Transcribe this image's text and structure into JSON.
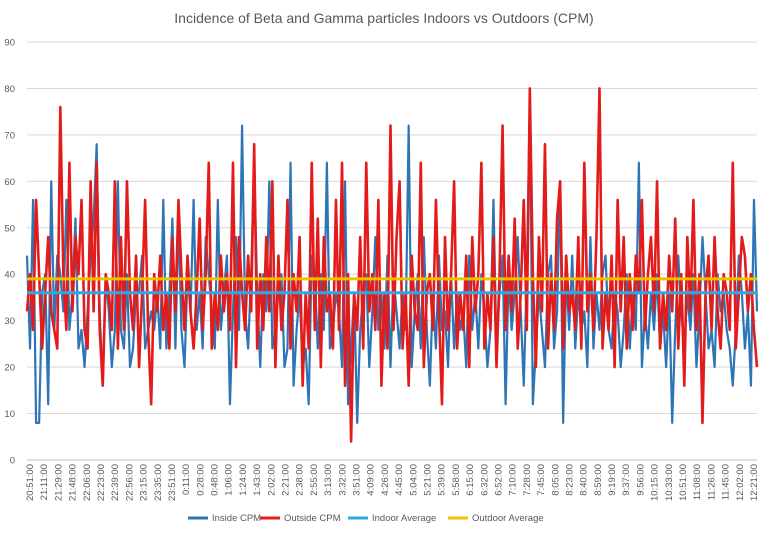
{
  "chart_data": {
    "type": "line",
    "title": "Incidence of Beta and Gamma particles Indoors vs Outdoors (CPM)",
    "ylim": [
      0,
      90
    ],
    "yticks": [
      0,
      10,
      20,
      30,
      40,
      50,
      60,
      70,
      80,
      90
    ],
    "grid": true,
    "legend_position": "bottom",
    "x_tick_labels": [
      "20:51:00",
      "21:11:00",
      "21:29:00",
      "21:48:00",
      "22:06:00",
      "22:23:00",
      "22:39:00",
      "22:56:00",
      "23:15:00",
      "23:35:00",
      "23:51:00",
      "0:11:00",
      "0:28:00",
      "0:48:00",
      "1:06:00",
      "1:24:00",
      "1:43:00",
      "2:02:00",
      "2:21:00",
      "2:38:00",
      "2:55:00",
      "3:13:00",
      "3:32:00",
      "3:51:00",
      "4:09:00",
      "4:26:00",
      "4:45:00",
      "5:04:00",
      "5:21:00",
      "5:39:00",
      "5:58:00",
      "6:15:00",
      "6:32:00",
      "6:52:00",
      "7:10:00",
      "7:28:00",
      "7:45:00",
      "8:05:00",
      "8:23:00",
      "8:40:00",
      "8:59:00",
      "9:19:00",
      "9:37:00",
      "9:56:00",
      "10:15:00",
      "10:33:00",
      "10:51:00",
      "11:08:00",
      "11:26:00",
      "11:45:00",
      "12:02:00",
      "12:21:00"
    ],
    "series": [
      {
        "name": "Inside CPM",
        "color": "#2E75B6",
        "style": "line",
        "values": [
          44,
          24,
          56,
          8,
          8,
          36,
          40,
          12,
          60,
          28,
          44,
          40,
          32,
          56,
          28,
          36,
          52,
          24,
          28,
          20,
          32,
          44,
          52,
          68,
          32,
          16,
          40,
          32,
          20,
          28,
          60,
          28,
          24,
          40,
          20,
          24,
          36,
          36,
          44,
          24,
          28,
          32,
          28,
          36,
          24,
          56,
          24,
          36,
          52,
          24,
          52,
          28,
          20,
          40,
          32,
          56,
          28,
          36,
          24,
          48,
          40,
          32,
          24,
          56,
          28,
          36,
          44,
          12,
          32,
          48,
          28,
          72,
          32,
          24,
          40,
          64,
          36,
          20,
          40,
          32,
          60,
          24,
          28,
          36,
          40,
          20,
          24,
          64,
          16,
          28,
          36,
          20,
          24,
          12,
          44,
          40,
          24,
          40,
          28,
          64,
          24,
          28,
          36,
          32,
          20,
          60,
          12,
          24,
          36,
          8,
          28,
          36,
          40,
          20,
          32,
          48,
          28,
          36,
          24,
          44,
          20,
          40,
          32,
          24,
          36,
          28,
          72,
          20,
          32,
          40,
          24,
          48,
          28,
          16,
          36,
          24,
          44,
          28,
          32,
          20,
          40,
          24,
          36,
          28,
          32,
          20,
          44,
          28,
          36,
          24,
          40,
          32,
          20,
          28,
          56,
          24,
          36,
          44,
          12,
          40,
          28,
          36,
          48,
          32,
          16,
          40,
          76,
          12,
          24,
          36,
          28,
          20,
          40,
          44,
          24,
          32,
          60,
          8,
          40,
          28,
          44,
          24,
          36,
          28,
          32,
          20,
          48,
          24,
          36,
          28,
          40,
          44,
          28,
          24,
          36,
          32,
          20,
          28,
          40,
          24,
          36,
          28,
          64,
          20,
          32,
          24,
          36,
          28,
          40,
          24,
          32,
          20,
          36,
          8,
          28,
          44,
          32,
          24,
          36,
          28,
          40,
          20,
          32,
          48,
          36,
          24,
          28,
          20,
          40,
          32,
          36,
          28,
          24,
          16,
          28,
          44,
          36,
          24,
          32,
          16,
          56,
          32
        ]
      },
      {
        "name": "Outside CPM",
        "color": "#E31B1B",
        "style": "line",
        "values": [
          32,
          40,
          28,
          56,
          40,
          24,
          36,
          48,
          32,
          28,
          24,
          76,
          40,
          28,
          64,
          32,
          48,
          40,
          56,
          28,
          24,
          60,
          32,
          64,
          28,
          16,
          40,
          36,
          28,
          60,
          24,
          48,
          28,
          60,
          36,
          28,
          44,
          20,
          36,
          56,
          28,
          12,
          40,
          32,
          44,
          28,
          36,
          24,
          48,
          32,
          56,
          40,
          28,
          44,
          32,
          24,
          36,
          52,
          28,
          40,
          64,
          24,
          36,
          28,
          44,
          32,
          40,
          28,
          64,
          20,
          48,
          36,
          28,
          44,
          32,
          68,
          24,
          40,
          28,
          48,
          32,
          60,
          20,
          44,
          28,
          36,
          56,
          24,
          40,
          32,
          48,
          16,
          36,
          24,
          64,
          28,
          52,
          20,
          48,
          32,
          36,
          24,
          56,
          28,
          64,
          16,
          40,
          4,
          36,
          28,
          48,
          24,
          64,
          32,
          40,
          28,
          56,
          16,
          36,
          24,
          72,
          28,
          48,
          60,
          24,
          36,
          16,
          44,
          32,
          28,
          64,
          20,
          36,
          40,
          28,
          56,
          32,
          12,
          48,
          28,
          40,
          60,
          24,
          36,
          28,
          44,
          20,
          48,
          32,
          40,
          64,
          24,
          36,
          28,
          48,
          20,
          40,
          72,
          28,
          44,
          32,
          52,
          24,
          36,
          56,
          28,
          80,
          40,
          20,
          48,
          32,
          68,
          24,
          40,
          28,
          52,
          60,
          24,
          44,
          32,
          36,
          28,
          48,
          24,
          64,
          32,
          40,
          28,
          48,
          80,
          24,
          36,
          28,
          44,
          20,
          56,
          32,
          48,
          24,
          40,
          28,
          44,
          36,
          56,
          28,
          40,
          48,
          32,
          60,
          24,
          36,
          28,
          44,
          32,
          52,
          24,
          40,
          16,
          48,
          32,
          56,
          28,
          40,
          8,
          36,
          44,
          28,
          48,
          32,
          24,
          40,
          36,
          28,
          64,
          24,
          36,
          48,
          44,
          32,
          40,
          28,
          20
        ]
      },
      {
        "name": "Indoor Average",
        "color": "#2FA8E0",
        "style": "constant",
        "values": [
          36
        ]
      },
      {
        "name": "Outdoor Average",
        "color": "#F2C200",
        "style": "constant",
        "values": [
          39
        ]
      }
    ]
  }
}
